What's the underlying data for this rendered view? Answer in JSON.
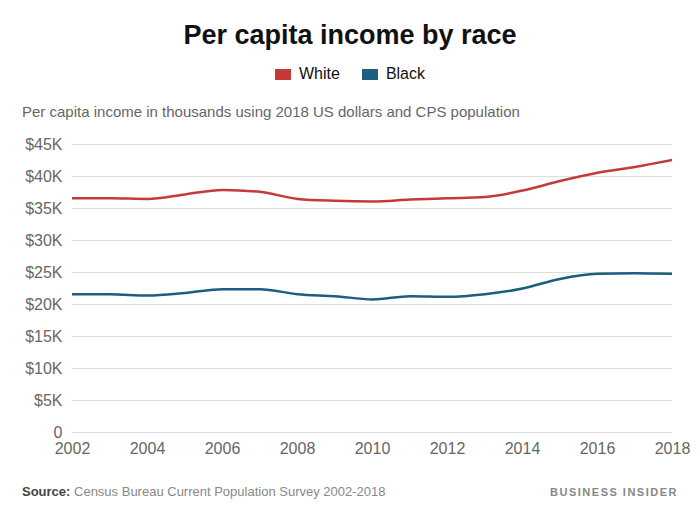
{
  "chart_data": {
    "type": "line",
    "title": "Per capita income by race",
    "subtitle": "Per capita income in thousands using 2018 US dollars and CPS population",
    "x": [
      2002,
      2003,
      2004,
      2005,
      2006,
      2007,
      2008,
      2009,
      2010,
      2011,
      2012,
      2013,
      2014,
      2015,
      2016,
      2017,
      2018
    ],
    "series": [
      {
        "name": "White",
        "color": "#c43a3a",
        "values": [
          36.6,
          36.6,
          36.5,
          37.2,
          37.9,
          37.6,
          36.5,
          36.2,
          36.1,
          36.4,
          36.6,
          36.8,
          37.8,
          39.3,
          40.6,
          41.5,
          42.6
        ]
      },
      {
        "name": "Black",
        "color": "#1b5e7e",
        "values": [
          21.6,
          21.6,
          21.4,
          21.8,
          22.4,
          22.4,
          21.6,
          21.3,
          20.8,
          21.3,
          21.2,
          21.6,
          22.5,
          24.0,
          24.8,
          24.9,
          24.8
        ]
      }
    ],
    "xlim": [
      2002,
      2018
    ],
    "xticks": [
      2002,
      2004,
      2006,
      2008,
      2010,
      2012,
      2014,
      2016,
      2018
    ],
    "ylim": [
      0,
      45
    ],
    "yticks": [
      0,
      {
        "value": 5,
        "label": "$5K"
      },
      {
        "value": 10,
        "label": "$10K"
      },
      {
        "value": 15,
        "label": "$15K"
      },
      {
        "value": 20,
        "label": "$20K"
      },
      {
        "value": 25,
        "label": "$25K"
      },
      {
        "value": 30,
        "label": "$30K"
      },
      {
        "value": 35,
        "label": "$35K"
      },
      {
        "value": 40,
        "label": "$40K"
      },
      {
        "value": 45,
        "label": "$45K"
      }
    ],
    "grid": true,
    "legend": "top",
    "source_label": "Source:",
    "source": "Census Bureau Current Population Survey 2002-2018",
    "brand": "BUSINESS INSIDER"
  }
}
